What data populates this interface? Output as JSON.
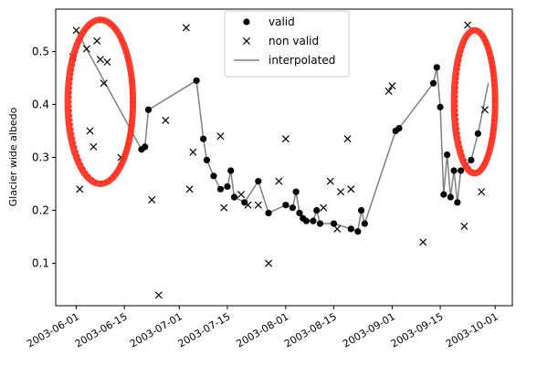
{
  "chart_data": {
    "type": "scatter",
    "ylabel": "Glacier wide albedo",
    "xlabel": "",
    "xlim": [
      "2003-05-26",
      "2003-10-06"
    ],
    "ylim": [
      0.02,
      0.58
    ],
    "x_ticks": [
      "2003-06-01",
      "2003-06-15",
      "2003-07-01",
      "2003-07-15",
      "2003-08-01",
      "2003-08-15",
      "2003-09-01",
      "2003-09-15",
      "2003-10-01"
    ],
    "y_ticks": [
      0.1,
      0.2,
      0.3,
      0.4,
      0.5
    ],
    "grid": false,
    "legend_position": "top-center",
    "series": [
      {
        "name": "valid",
        "marker": "filled-circle",
        "color": "#000000",
        "points": [
          [
            "2003-06-20",
            0.315
          ],
          [
            "2003-06-21",
            0.32
          ],
          [
            "2003-06-22",
            0.39
          ],
          [
            "2003-07-06",
            0.445
          ],
          [
            "2003-07-08",
            0.335
          ],
          [
            "2003-07-09",
            0.295
          ],
          [
            "2003-07-11",
            0.265
          ],
          [
            "2003-07-13",
            0.24
          ],
          [
            "2003-07-15",
            0.245
          ],
          [
            "2003-07-16",
            0.275
          ],
          [
            "2003-07-17",
            0.225
          ],
          [
            "2003-07-20",
            0.215
          ],
          [
            "2003-07-24",
            0.255
          ],
          [
            "2003-07-27",
            0.195
          ],
          [
            "2003-08-01",
            0.21
          ],
          [
            "2003-08-03",
            0.205
          ],
          [
            "2003-08-04",
            0.235
          ],
          [
            "2003-08-05",
            0.195
          ],
          [
            "2003-08-06",
            0.185
          ],
          [
            "2003-08-07",
            0.18
          ],
          [
            "2003-08-09",
            0.18
          ],
          [
            "2003-08-10",
            0.2
          ],
          [
            "2003-08-11",
            0.175
          ],
          [
            "2003-08-15",
            0.175
          ],
          [
            "2003-08-20",
            0.165
          ],
          [
            "2003-08-22",
            0.16
          ],
          [
            "2003-08-23",
            0.2
          ],
          [
            "2003-08-24",
            0.175
          ],
          [
            "2003-09-02",
            0.35
          ],
          [
            "2003-09-03",
            0.355
          ],
          [
            "2003-09-13",
            0.44
          ],
          [
            "2003-09-14",
            0.47
          ],
          [
            "2003-09-15",
            0.395
          ],
          [
            "2003-09-16",
            0.23
          ],
          [
            "2003-09-17",
            0.305
          ],
          [
            "2003-09-18",
            0.225
          ],
          [
            "2003-09-19",
            0.275
          ],
          [
            "2003-09-20",
            0.215
          ],
          [
            "2003-09-21",
            0.275
          ],
          [
            "2003-09-24",
            0.295
          ],
          [
            "2003-09-26",
            0.345
          ]
        ]
      },
      {
        "name": "non valid",
        "marker": "x",
        "color": "#000000",
        "points": [
          [
            "2003-05-31",
            0.49
          ],
          [
            "2003-06-01",
            0.54
          ],
          [
            "2003-06-02",
            0.24
          ],
          [
            "2003-06-04",
            0.505
          ],
          [
            "2003-06-05",
            0.35
          ],
          [
            "2003-06-06",
            0.32
          ],
          [
            "2003-06-07",
            0.52
          ],
          [
            "2003-06-08",
            0.485
          ],
          [
            "2003-06-09",
            0.44
          ],
          [
            "2003-06-10",
            0.48
          ],
          [
            "2003-06-14",
            0.3
          ],
          [
            "2003-06-23",
            0.22
          ],
          [
            "2003-06-25",
            0.04
          ],
          [
            "2003-06-27",
            0.37
          ],
          [
            "2003-07-03",
            0.545
          ],
          [
            "2003-07-04",
            0.24
          ],
          [
            "2003-07-05",
            0.31
          ],
          [
            "2003-07-13",
            0.34
          ],
          [
            "2003-07-14",
            0.205
          ],
          [
            "2003-07-19",
            0.23
          ],
          [
            "2003-07-21",
            0.21
          ],
          [
            "2003-07-24",
            0.21
          ],
          [
            "2003-07-27",
            0.1
          ],
          [
            "2003-07-30",
            0.255
          ],
          [
            "2003-08-01",
            0.335
          ],
          [
            "2003-08-12",
            0.205
          ],
          [
            "2003-08-14",
            0.255
          ],
          [
            "2003-08-16",
            0.165
          ],
          [
            "2003-08-17",
            0.235
          ],
          [
            "2003-08-19",
            0.335
          ],
          [
            "2003-08-20",
            0.24
          ],
          [
            "2003-08-31",
            0.425
          ],
          [
            "2003-09-01",
            0.435
          ],
          [
            "2003-09-10",
            0.14
          ],
          [
            "2003-09-22",
            0.17
          ],
          [
            "2003-09-23",
            0.55
          ],
          [
            "2003-09-27",
            0.235
          ],
          [
            "2003-09-28",
            0.39
          ]
        ]
      },
      {
        "name": "interpolated",
        "marker": "line",
        "color": "#808080",
        "points": [
          [
            "2003-06-01",
            0.54
          ],
          [
            "2003-06-20",
            0.315
          ],
          [
            "2003-06-21",
            0.32
          ],
          [
            "2003-06-22",
            0.39
          ],
          [
            "2003-06-22",
            0.39
          ],
          [
            "2003-07-06",
            0.445
          ],
          [
            "2003-07-08",
            0.335
          ],
          [
            "2003-07-09",
            0.295
          ],
          [
            "2003-07-11",
            0.265
          ],
          [
            "2003-07-13",
            0.24
          ],
          [
            "2003-07-15",
            0.245
          ],
          [
            "2003-07-16",
            0.275
          ],
          [
            "2003-07-17",
            0.225
          ],
          [
            "2003-07-20",
            0.215
          ],
          [
            "2003-07-24",
            0.255
          ],
          [
            "2003-07-27",
            0.195
          ],
          [
            "2003-08-01",
            0.21
          ],
          [
            "2003-08-03",
            0.205
          ],
          [
            "2003-08-04",
            0.235
          ],
          [
            "2003-08-05",
            0.195
          ],
          [
            "2003-08-06",
            0.185
          ],
          [
            "2003-08-07",
            0.18
          ],
          [
            "2003-08-09",
            0.18
          ],
          [
            "2003-08-10",
            0.2
          ],
          [
            "2003-08-11",
            0.175
          ],
          [
            "2003-08-15",
            0.175
          ],
          [
            "2003-08-20",
            0.165
          ],
          [
            "2003-08-22",
            0.16
          ],
          [
            "2003-08-23",
            0.2
          ],
          [
            "2003-08-24",
            0.175
          ],
          [
            "2003-09-02",
            0.35
          ],
          [
            "2003-09-03",
            0.355
          ],
          [
            "2003-09-13",
            0.44
          ],
          [
            "2003-09-14",
            0.47
          ],
          [
            "2003-09-15",
            0.395
          ],
          [
            "2003-09-16",
            0.23
          ],
          [
            "2003-09-17",
            0.305
          ],
          [
            "2003-09-18",
            0.225
          ],
          [
            "2003-09-19",
            0.275
          ],
          [
            "2003-09-20",
            0.215
          ],
          [
            "2003-09-21",
            0.275
          ],
          [
            "2003-09-24",
            0.295
          ],
          [
            "2003-09-26",
            0.345
          ],
          [
            "2003-09-29",
            0.44
          ]
        ]
      }
    ],
    "annotations": [
      {
        "shape": "ellipse",
        "color": "#ff2a1a",
        "center": [
          "2003-06-08",
          0.405
        ],
        "radius_days": 9.5,
        "radius_value": 0.155
      },
      {
        "shape": "ellipse",
        "color": "#ff2a1a",
        "center": [
          "2003-09-25",
          0.405
        ],
        "radius_days": 6,
        "radius_value": 0.135
      }
    ]
  }
}
